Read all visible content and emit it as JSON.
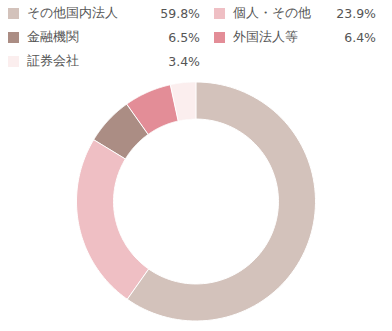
{
  "chart_data": {
    "type": "donut",
    "categories": [
      "その他国内法人",
      "個人・その他",
      "金融機関",
      "外国法人等",
      "証券会社"
    ],
    "values": [
      59.8,
      23.9,
      6.5,
      6.4,
      3.4
    ],
    "value_labels": [
      "59.8%",
      "23.9%",
      "6.5%",
      "6.4%",
      "3.4%"
    ],
    "colors": [
      "#d3c2bb",
      "#efbfc4",
      "#ab8d84",
      "#e38d97",
      "#fbeeee"
    ],
    "legend": "top"
  }
}
